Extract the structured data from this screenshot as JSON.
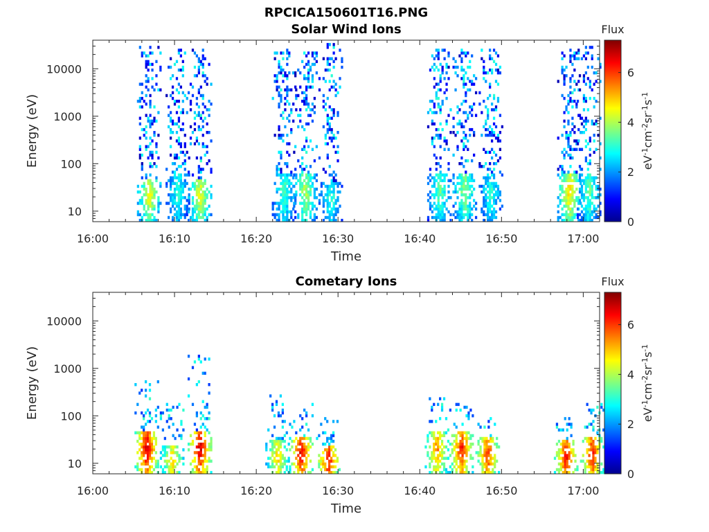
{
  "figure": {
    "title": "RPCICA150601T16.PNG"
  },
  "colormap": [
    "#00008f",
    "#0000ff",
    "#0080ff",
    "#00ffff",
    "#80ff80",
    "#ffff00",
    "#ff8000",
    "#ff0000",
    "#800000"
  ],
  "chart_data": [
    {
      "type": "heatmap",
      "title": "Solar Wind Ions",
      "xlabel": "Time",
      "ylabel": "Energy (eV)",
      "xlim": [
        "16:00",
        "17:02"
      ],
      "ylim": [
        6,
        40000
      ],
      "y_scale": "log",
      "x_ticks": [
        "16:00",
        "16:10",
        "16:20",
        "16:30",
        "16:40",
        "16:50",
        "17:00"
      ],
      "y_ticks": [
        10,
        100,
        1000,
        10000
      ],
      "y_tick_labels": [
        "10",
        "100",
        "1000",
        "10000"
      ],
      "colorbar": {
        "title": "Flux",
        "label": "eV-1cm-2sr-1s-1",
        "range": [
          0,
          7.3
        ],
        "ticks": [
          0,
          2,
          4,
          6
        ],
        "tick_labels": [
          "0",
          "2",
          "4",
          "6"
        ]
      },
      "bursts": [
        {
          "t": 6.8,
          "emax": 30000,
          "core_max": 50,
          "peak": 4.6
        },
        {
          "t": 10.3,
          "emax": 25000,
          "core_max": 60,
          "peak": 3.2
        },
        {
          "t": 13.0,
          "emax": 30000,
          "core_max": 50,
          "peak": 4.6
        },
        {
          "t": 23.3,
          "emax": 25000,
          "core_max": 60,
          "peak": 3.4
        },
        {
          "t": 25.9,
          "emax": 25000,
          "core_max": 60,
          "peak": 4.2
        },
        {
          "t": 29.0,
          "emax": 35000,
          "core_max": 40,
          "peak": 3.2
        },
        {
          "t": 42.3,
          "emax": 25000,
          "core_max": 60,
          "peak": 3.6
        },
        {
          "t": 45.4,
          "emax": 25000,
          "core_max": 60,
          "peak": 4.0
        },
        {
          "t": 48.6,
          "emax": 25000,
          "core_max": 60,
          "peak": 3.2
        },
        {
          "t": 58.2,
          "emax": 25000,
          "core_max": 60,
          "peak": 5.0
        },
        {
          "t": 60.6,
          "emax": 30000,
          "core_max": 60,
          "peak": 3.6
        }
      ]
    },
    {
      "type": "heatmap",
      "title": "Cometary Ions",
      "xlabel": "Time",
      "ylabel": "Energy (eV)",
      "xlim": [
        "16:00",
        "17:02"
      ],
      "ylim": [
        6,
        40000
      ],
      "y_scale": "log",
      "x_ticks": [
        "16:00",
        "16:10",
        "16:20",
        "16:30",
        "16:40",
        "16:50",
        "17:00"
      ],
      "y_ticks": [
        10,
        100,
        1000,
        10000
      ],
      "y_tick_labels": [
        "10",
        "100",
        "1000",
        "10000"
      ],
      "colorbar": {
        "title": "Flux",
        "label": "eV-1cm-2sr-1s-1",
        "range": [
          0,
          7.3
        ],
        "ticks": [
          0,
          2,
          4,
          6
        ],
        "tick_labels": [
          "0",
          "2",
          "4",
          "6"
        ]
      },
      "bursts": [
        {
          "t": 6.5,
          "emax": 600,
          "core_max": 45,
          "peak": 7.0
        },
        {
          "t": 9.6,
          "emax": 200,
          "core_max": 25,
          "peak": 5.0
        },
        {
          "t": 13.0,
          "emax": 2000,
          "core_max": 45,
          "peak": 7.0
        },
        {
          "t": 22.5,
          "emax": 300,
          "core_max": 30,
          "peak": 5.0
        },
        {
          "t": 25.4,
          "emax": 200,
          "core_max": 35,
          "peak": 6.8
        },
        {
          "t": 28.7,
          "emax": 100,
          "core_max": 25,
          "peak": 6.5
        },
        {
          "t": 42.0,
          "emax": 250,
          "core_max": 45,
          "peak": 5.6
        },
        {
          "t": 45.0,
          "emax": 200,
          "core_max": 45,
          "peak": 6.5
        },
        {
          "t": 48.2,
          "emax": 100,
          "core_max": 35,
          "peak": 6.2
        },
        {
          "t": 57.8,
          "emax": 100,
          "core_max": 30,
          "peak": 6.5
        },
        {
          "t": 61.0,
          "emax": 200,
          "core_max": 35,
          "peak": 6.5
        }
      ]
    }
  ]
}
